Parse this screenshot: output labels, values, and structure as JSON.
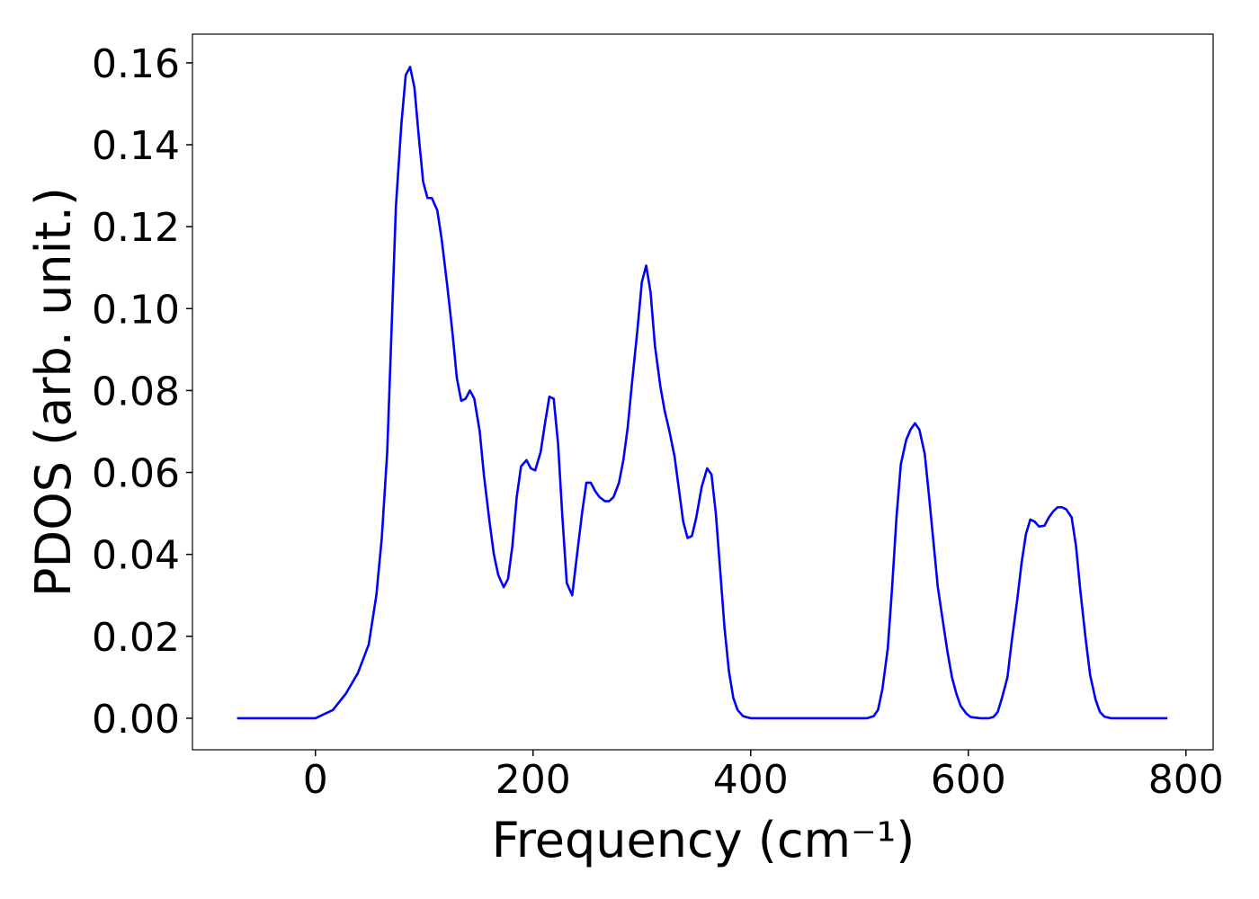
{
  "chart_data": {
    "type": "line",
    "xlabel": "Frequency (cm⁻¹)",
    "ylabel": "PDOS (arb. unit.)",
    "color": "#0000ff",
    "x": [
      -72,
      -10,
      0,
      16,
      28,
      39,
      49,
      56,
      61,
      66,
      70,
      74,
      79,
      83,
      87,
      91,
      95,
      99,
      103,
      107,
      112,
      116,
      121,
      126,
      130,
      134,
      138,
      142,
      146,
      151,
      155,
      160,
      164,
      168,
      173,
      177,
      181,
      185,
      189,
      194,
      198,
      202,
      207,
      211,
      215,
      219,
      223,
      227,
      231,
      236,
      240,
      245,
      249,
      253,
      257,
      261,
      266,
      270,
      274,
      279,
      283,
      287,
      291,
      296,
      300,
      304,
      308,
      312,
      317,
      321,
      325,
      330,
      334,
      338,
      342,
      346,
      350,
      355,
      360,
      364,
      368,
      372,
      376,
      380,
      384,
      388,
      393,
      400,
      507,
      513,
      517,
      521,
      526,
      530,
      534,
      538,
      543,
      547,
      551,
      555,
      560,
      564,
      568,
      572,
      577,
      581,
      585,
      589,
      593,
      598,
      602,
      611,
      619,
      623,
      627,
      631,
      636,
      640,
      645,
      649,
      653,
      657,
      661,
      665,
      670,
      674,
      678,
      682,
      686,
      690,
      695,
      699,
      703,
      708,
      712,
      717,
      721,
      725,
      731,
      783
    ],
    "values": [
      0,
      0,
      0,
      0.002,
      0.006,
      0.011,
      0.018,
      0.03,
      0.044,
      0.065,
      0.095,
      0.125,
      0.145,
      0.157,
      0.159,
      0.154,
      0.142,
      0.131,
      0.127,
      0.127,
      0.124,
      0.117,
      0.106,
      0.094,
      0.083,
      0.0775,
      0.078,
      0.08,
      0.078,
      0.07,
      0.059,
      0.048,
      0.04,
      0.035,
      0.032,
      0.034,
      0.042,
      0.054,
      0.0615,
      0.063,
      0.061,
      0.0605,
      0.065,
      0.072,
      0.0785,
      0.078,
      0.067,
      0.049,
      0.033,
      0.03,
      0.039,
      0.05,
      0.0575,
      0.0575,
      0.0555,
      0.054,
      0.053,
      0.053,
      0.054,
      0.0575,
      0.063,
      0.071,
      0.082,
      0.095,
      0.1065,
      0.1105,
      0.104,
      0.091,
      0.081,
      0.075,
      0.0705,
      0.064,
      0.056,
      0.048,
      0.044,
      0.0445,
      0.049,
      0.0565,
      0.061,
      0.0595,
      0.05,
      0.036,
      0.022,
      0.0115,
      0.005,
      0.002,
      0.0005,
      0,
      0,
      0.0005,
      0.002,
      0.007,
      0.017,
      0.032,
      0.049,
      0.062,
      0.068,
      0.0705,
      0.072,
      0.0705,
      0.0645,
      0.054,
      0.043,
      0.032,
      0.023,
      0.016,
      0.01,
      0.006,
      0.003,
      0.0012,
      0.0003,
      0,
      0,
      0.0003,
      0.0015,
      0.005,
      0.01,
      0.019,
      0.029,
      0.038,
      0.045,
      0.0485,
      0.048,
      0.0468,
      0.047,
      0.049,
      0.0505,
      0.0515,
      0.0515,
      0.051,
      0.049,
      0.042,
      0.031,
      0.019,
      0.0105,
      0.0045,
      0.0015,
      0.0004,
      0,
      0
    ],
    "xlim": [
      -113,
      825
    ],
    "ylim": [
      -0.0077,
      0.167
    ],
    "xticks": [
      0,
      200,
      400,
      600,
      800
    ],
    "yticks": [
      {
        "value": 0,
        "label": "0.00"
      },
      0.02,
      0.04,
      0.06,
      0.08,
      {
        "value": 0.1,
        "label": "0.10"
      },
      0.12,
      0.14,
      0.16
    ],
    "grid": false
  }
}
